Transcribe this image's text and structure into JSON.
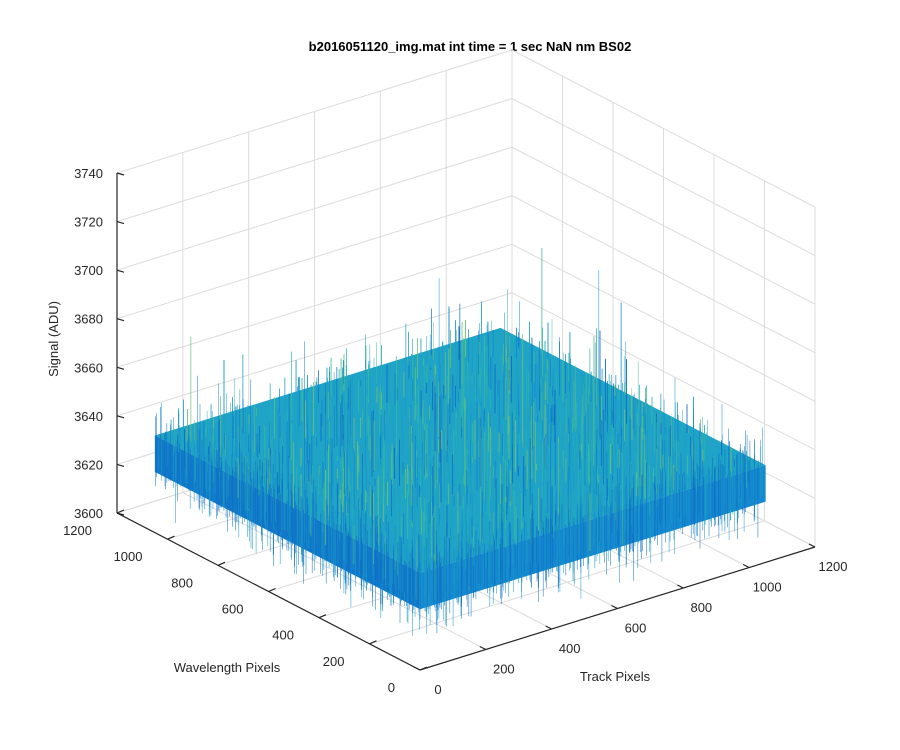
{
  "chart_data": {
    "type": "surface",
    "title": "b2016051120_img.mat int time = 1 sec  NaN nm BS02",
    "xlabel": "Track Pixels",
    "ylabel": "Wavelength Pixels",
    "zlabel": "Signal (ADU)",
    "xlim": [
      0,
      1200
    ],
    "ylim": [
      0,
      1200
    ],
    "zlim": [
      3600,
      3740
    ],
    "xticks": [
      "0",
      "200",
      "400",
      "600",
      "800",
      "1000",
      "1200"
    ],
    "yticks": [
      "0",
      "200",
      "400",
      "600",
      "800",
      "1000",
      "1200"
    ],
    "zticks": [
      "3600",
      "3620",
      "3640",
      "3660",
      "3680",
      "3700",
      "3720",
      "3740"
    ],
    "surface": {
      "x_extent": [
        0,
        1050
      ],
      "y_extent": [
        0,
        1050
      ],
      "mean_signal": 3640,
      "noise_range": [
        3615,
        3700
      ]
    },
    "grid": true,
    "colormap": "parula"
  }
}
